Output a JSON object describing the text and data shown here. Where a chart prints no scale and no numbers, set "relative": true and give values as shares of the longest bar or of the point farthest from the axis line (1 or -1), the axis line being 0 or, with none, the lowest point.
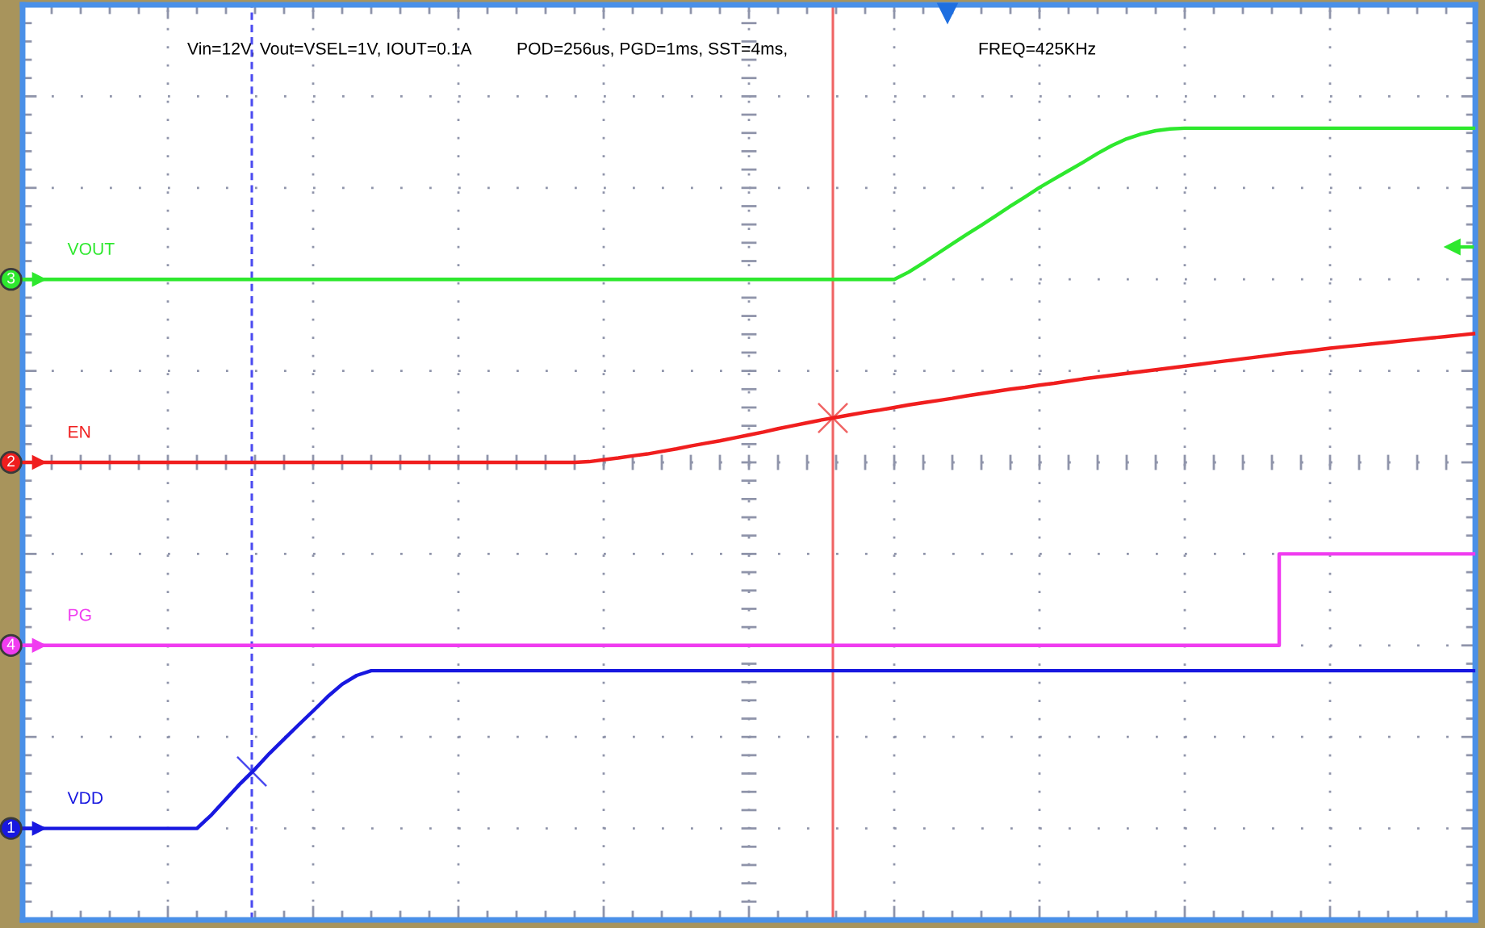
{
  "chart_data": {
    "type": "line",
    "relative": true,
    "grid": true,
    "categories": [
      null,
      null,
      null,
      null,
      null,
      null,
      null,
      null,
      null,
      null,
      null,
      null,
      null,
      null,
      null,
      null,
      null,
      null,
      null,
      null,
      null,
      null,
      null,
      null,
      null,
      null,
      null,
      null,
      null,
      null,
      null,
      null,
      null,
      null,
      null,
      null,
      null,
      null,
      null,
      null,
      null,
      null,
      null,
      null,
      null,
      null,
      null,
      null,
      null,
      null,
      null,
      null,
      null,
      null,
      null,
      null,
      null,
      null,
      null,
      null,
      null,
      null,
      null,
      null,
      null,
      null,
      null,
      null,
      null,
      null,
      null,
      null,
      null,
      null,
      null,
      null,
      null,
      null,
      null,
      null,
      null,
      null,
      null,
      null,
      null,
      null,
      null,
      null,
      null,
      null,
      null,
      null,
      null,
      null,
      null,
      null,
      null,
      null,
      null,
      null,
      null
    ],
    "series": [
      {
        "name": "VOUT",
        "color": "#2ee82e",
        "values": [
          0.5,
          0.5,
          0.5,
          0.5,
          0.5,
          0.5,
          0.5,
          0.5,
          0.5,
          0.5,
          0.5,
          0.5,
          0.5,
          0.5,
          0.5,
          0.5,
          0.5,
          0.5,
          0.5,
          0.5,
          0.5,
          0.5,
          0.5,
          0.5,
          0.5,
          0.5,
          0.5,
          0.5,
          0.5,
          0.5,
          0.5,
          0.5,
          0.5,
          0.5,
          0.5,
          0.5,
          0.5,
          0.5,
          0.5,
          0.5,
          0.5,
          0.5,
          0.5,
          0.5,
          0.5,
          0.5,
          0.5,
          0.5,
          0.5,
          0.5,
          0.5,
          0.5,
          0.5,
          0.5,
          0.5,
          0.5,
          0.5,
          0.5,
          0.5,
          0.5,
          0.5,
          0.52,
          0.545,
          0.571,
          0.597,
          0.623,
          0.648,
          0.674,
          0.7,
          0.725,
          0.751,
          0.774,
          0.797,
          0.82,
          0.844,
          0.866,
          0.884,
          0.897,
          0.906,
          0.911,
          0.913,
          0.913,
          0.913,
          0.913,
          0.913,
          0.913,
          0.913,
          0.913,
          0.913,
          0.913,
          0.913,
          0.913,
          0.913,
          0.913,
          0.913,
          0.913,
          0.913,
          0.913,
          0.913,
          0.913,
          0.913
        ]
      },
      {
        "name": "EN",
        "color": "#f01e1e",
        "values": [
          0,
          0,
          0,
          0,
          0,
          0,
          0,
          0,
          0,
          0,
          0,
          0,
          0,
          0,
          0,
          0,
          0,
          0,
          0,
          0,
          0,
          0,
          0,
          0,
          0,
          0,
          0,
          0,
          0,
          0,
          0,
          0,
          0,
          0,
          0,
          0,
          0,
          0,
          0,
          0.002,
          0.007,
          0.012,
          0.018,
          0.023,
          0.03,
          0.037,
          0.045,
          0.052,
          0.059,
          0.067,
          0.075,
          0.083,
          0.092,
          0.1,
          0.108,
          0.116,
          0.123,
          0.13,
          0.137,
          0.143,
          0.15,
          0.157,
          0.163,
          0.169,
          0.175,
          0.182,
          0.188,
          0.194,
          0.2,
          0.205,
          0.211,
          0.216,
          0.222,
          0.228,
          0.233,
          0.238,
          0.243,
          0.248,
          0.253,
          0.258,
          0.263,
          0.268,
          0.273,
          0.278,
          0.283,
          0.288,
          0.293,
          0.298,
          0.302,
          0.307,
          0.312,
          0.316,
          0.32,
          0.324,
          0.328,
          0.332,
          0.336,
          0.34,
          0.344,
          0.348,
          0.352
        ]
      },
      {
        "name": "PG",
        "type": "step",
        "color": "#f03cf0",
        "values": [
          -0.5,
          -0.5,
          -0.5,
          -0.5,
          -0.5,
          -0.5,
          -0.5,
          -0.5,
          -0.5,
          -0.5,
          -0.5,
          -0.5,
          -0.5,
          -0.5,
          -0.5,
          -0.5,
          -0.5,
          -0.5,
          -0.5,
          -0.5,
          -0.5,
          -0.5,
          -0.5,
          -0.5,
          -0.5,
          -0.5,
          -0.5,
          -0.5,
          -0.5,
          -0.5,
          -0.5,
          -0.5,
          -0.5,
          -0.5,
          -0.5,
          -0.5,
          -0.5,
          -0.5,
          -0.5,
          -0.5,
          -0.5,
          -0.5,
          -0.5,
          -0.5,
          -0.5,
          -0.5,
          -0.5,
          -0.5,
          -0.5,
          -0.5,
          -0.5,
          -0.5,
          -0.5,
          -0.5,
          -0.5,
          -0.5,
          -0.5,
          -0.5,
          -0.5,
          -0.5,
          -0.5,
          -0.5,
          -0.5,
          -0.5,
          -0.5,
          -0.5,
          -0.5,
          -0.5,
          -0.5,
          -0.5,
          -0.5,
          -0.5,
          -0.5,
          -0.5,
          -0.5,
          -0.5,
          -0.5,
          -0.5,
          -0.5,
          -0.5,
          -0.5,
          -0.5,
          -0.5,
          -0.5,
          -0.5,
          -0.5,
          -0.5,
          -0.25,
          -0.25,
          -0.25,
          -0.25,
          -0.25,
          -0.25,
          -0.25,
          -0.25,
          -0.25,
          -0.25,
          -0.25,
          -0.25,
          -0.25,
          -0.25
        ]
      },
      {
        "name": "VDD",
        "color": "#1818e0",
        "values": [
          -1,
          -1,
          -1,
          -1,
          -1,
          -1,
          -1,
          -1,
          -1,
          -1,
          -1,
          -1,
          -1,
          -0.963,
          -0.92,
          -0.877,
          -0.838,
          -0.795,
          -0.756,
          -0.717,
          -0.679,
          -0.64,
          -0.606,
          -0.582,
          -0.569,
          -0.569,
          -0.569,
          -0.569,
          -0.569,
          -0.569,
          -0.569,
          -0.569,
          -0.569,
          -0.569,
          -0.569,
          -0.569,
          -0.569,
          -0.569,
          -0.569,
          -0.569,
          -0.569,
          -0.569,
          -0.569,
          -0.569,
          -0.569,
          -0.569,
          -0.569,
          -0.569,
          -0.569,
          -0.569,
          -0.569,
          -0.569,
          -0.569,
          -0.569,
          -0.569,
          -0.569,
          -0.569,
          -0.569,
          -0.569,
          -0.569,
          -0.569,
          -0.569,
          -0.569,
          -0.569,
          -0.569,
          -0.569,
          -0.569,
          -0.569,
          -0.569,
          -0.569,
          -0.569,
          -0.569,
          -0.569,
          -0.569,
          -0.569,
          -0.569,
          -0.569,
          -0.569,
          -0.569,
          -0.569,
          -0.569,
          -0.569,
          -0.569,
          -0.569,
          -0.569,
          -0.569,
          -0.569,
          -0.569,
          -0.569,
          -0.569,
          -0.569,
          -0.569,
          -0.569,
          -0.569,
          -0.569,
          -0.569,
          -0.569,
          -0.569,
          -0.569,
          -0.569,
          -0.569
        ]
      }
    ],
    "annotations": [
      {
        "text": "3",
        "y": 0.5
      },
      {
        "text": "2",
        "y": 0
      },
      {
        "text": "4",
        "y": -0.5
      },
      {
        "text": "1",
        "y": -1
      },
      "Vin=12V, Vout=VSEL=1V, IOUT=0.1A",
      "POD=256us, PGD=1ms, SST=4ms,",
      "FREQ=425KHz"
    ]
  }
}
